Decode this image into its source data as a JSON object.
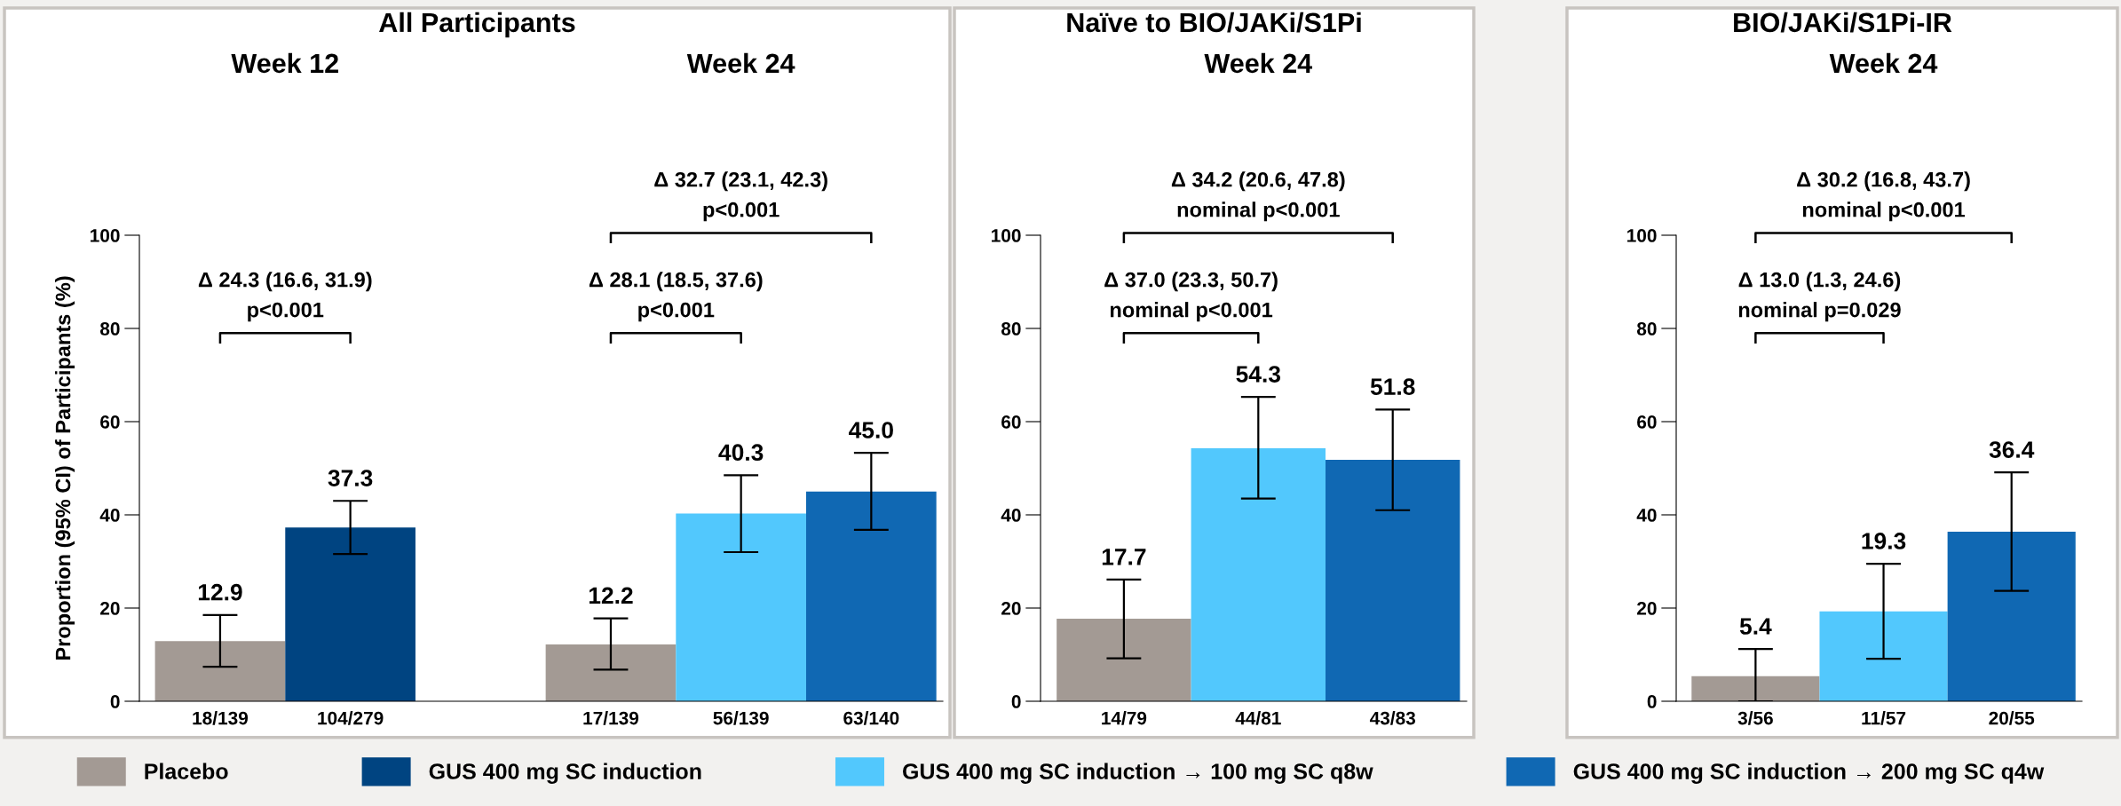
{
  "chart_data": [
    {
      "type": "bar",
      "title": "All Participants",
      "ylabel": "Proportion (95% CI) of Participants (%)",
      "categories": [
        "18/139",
        "104/279",
        null,
        "17/139",
        "56/139",
        "63/140"
      ],
      "series": [
        {
          "name": "Placebo",
          "color": "#a39a94",
          "values": [
            12.9,
            null,
            null,
            12.2,
            null,
            null
          ],
          "errors": [
            [
              7.4,
              18.5
            ],
            null,
            null,
            [
              6.8,
              17.8
            ],
            null,
            null
          ]
        },
        {
          "name": "GUS 400 mg SC induction",
          "color": "#004481",
          "values": [
            null,
            37.3,
            null,
            null,
            null,
            null
          ],
          "errors": [
            null,
            [
              31.6,
              43.0
            ],
            null,
            null,
            null,
            null
          ]
        },
        {
          "name": "GUS 400 mg SC induction → 100 mg SC q8w",
          "color": "#52c8fd",
          "values": [
            null,
            null,
            null,
            null,
            40.3,
            null
          ],
          "errors": [
            null,
            null,
            null,
            null,
            [
              32.0,
              48.5
            ],
            null
          ]
        },
        {
          "name": "GUS 400 mg SC induction → 200 mg SC q4w",
          "color": "#1068b3",
          "values": [
            null,
            null,
            null,
            null,
            null,
            45.0
          ],
          "value_labels": [
            null,
            null,
            null,
            null,
            null,
            "45.0"
          ],
          "errors": [
            null,
            null,
            null,
            null,
            null,
            [
              36.8,
              53.3
            ]
          ]
        }
      ],
      "ylim": [
        0,
        100
      ],
      "yticks": [
        0,
        20,
        40,
        60,
        80,
        100
      ],
      "data_labels": true,
      "legend": "bottom",
      "annotations": [
        "Week 12",
        "Week 24",
        "Δ 24.3 (16.6, 31.9)\np<0.001",
        "Δ 28.1 (18.5, 37.6)\np<0.001",
        "Δ 32.7 (23.1, 42.3)\np<0.001"
      ]
    },
    {
      "type": "bar",
      "title": "Naïve to BIO/JAKi/S1Pi",
      "categories": [
        "14/79",
        "44/81",
        "43/83"
      ],
      "series": [
        {
          "color": "#a39a94",
          "values": [
            17.7,
            null,
            null
          ],
          "errors": [
            [
              9.2,
              26.1
            ],
            null,
            null
          ]
        },
        {
          "color": "#52c8fd",
          "values": [
            null,
            54.3,
            null
          ],
          "errors": [
            null,
            [
              43.5,
              65.3
            ],
            null
          ]
        },
        {
          "color": "#1068b3",
          "values": [
            null,
            null,
            51.8
          ],
          "errors": [
            null,
            null,
            [
              41.0,
              62.6
            ]
          ]
        }
      ],
      "ylim": [
        0,
        100
      ],
      "yticks": [
        0,
        20,
        40,
        60,
        80,
        100
      ],
      "data_labels": true,
      "annotations": [
        "Week 24",
        "Δ 37.0 (23.3, 50.7)\nnominal p<0.001",
        "Δ 34.2 (20.6, 47.8)\nnominal p<0.001"
      ]
    },
    {
      "type": "bar",
      "title": "BIO/JAKi/S1Pi-IR",
      "categories": [
        "3/56",
        "11/57",
        "20/55"
      ],
      "series": [
        {
          "color": "#a39a94",
          "values": [
            5.4,
            null,
            null
          ],
          "errors": [
            [
              0,
              11.2
            ],
            null,
            null
          ]
        },
        {
          "color": "#52c8fd",
          "values": [
            null,
            19.3,
            null
          ],
          "errors": [
            null,
            [
              9.1,
              29.5
            ],
            null
          ]
        },
        {
          "color": "#1068b3",
          "values": [
            null,
            null,
            36.4
          ],
          "errors": [
            null,
            null,
            [
              23.7,
              49.1
            ]
          ]
        }
      ],
      "ylim": [
        0,
        100
      ],
      "yticks": [
        0,
        20,
        40,
        60,
        80,
        100
      ],
      "data_labels": true,
      "annotations": [
        "Week 24",
        "Δ 13.0 (1.3, 24.6)\nnominal p=0.029",
        "Δ 30.2 (16.8, 43.7)\nnominal p<0.001"
      ]
    }
  ]
}
